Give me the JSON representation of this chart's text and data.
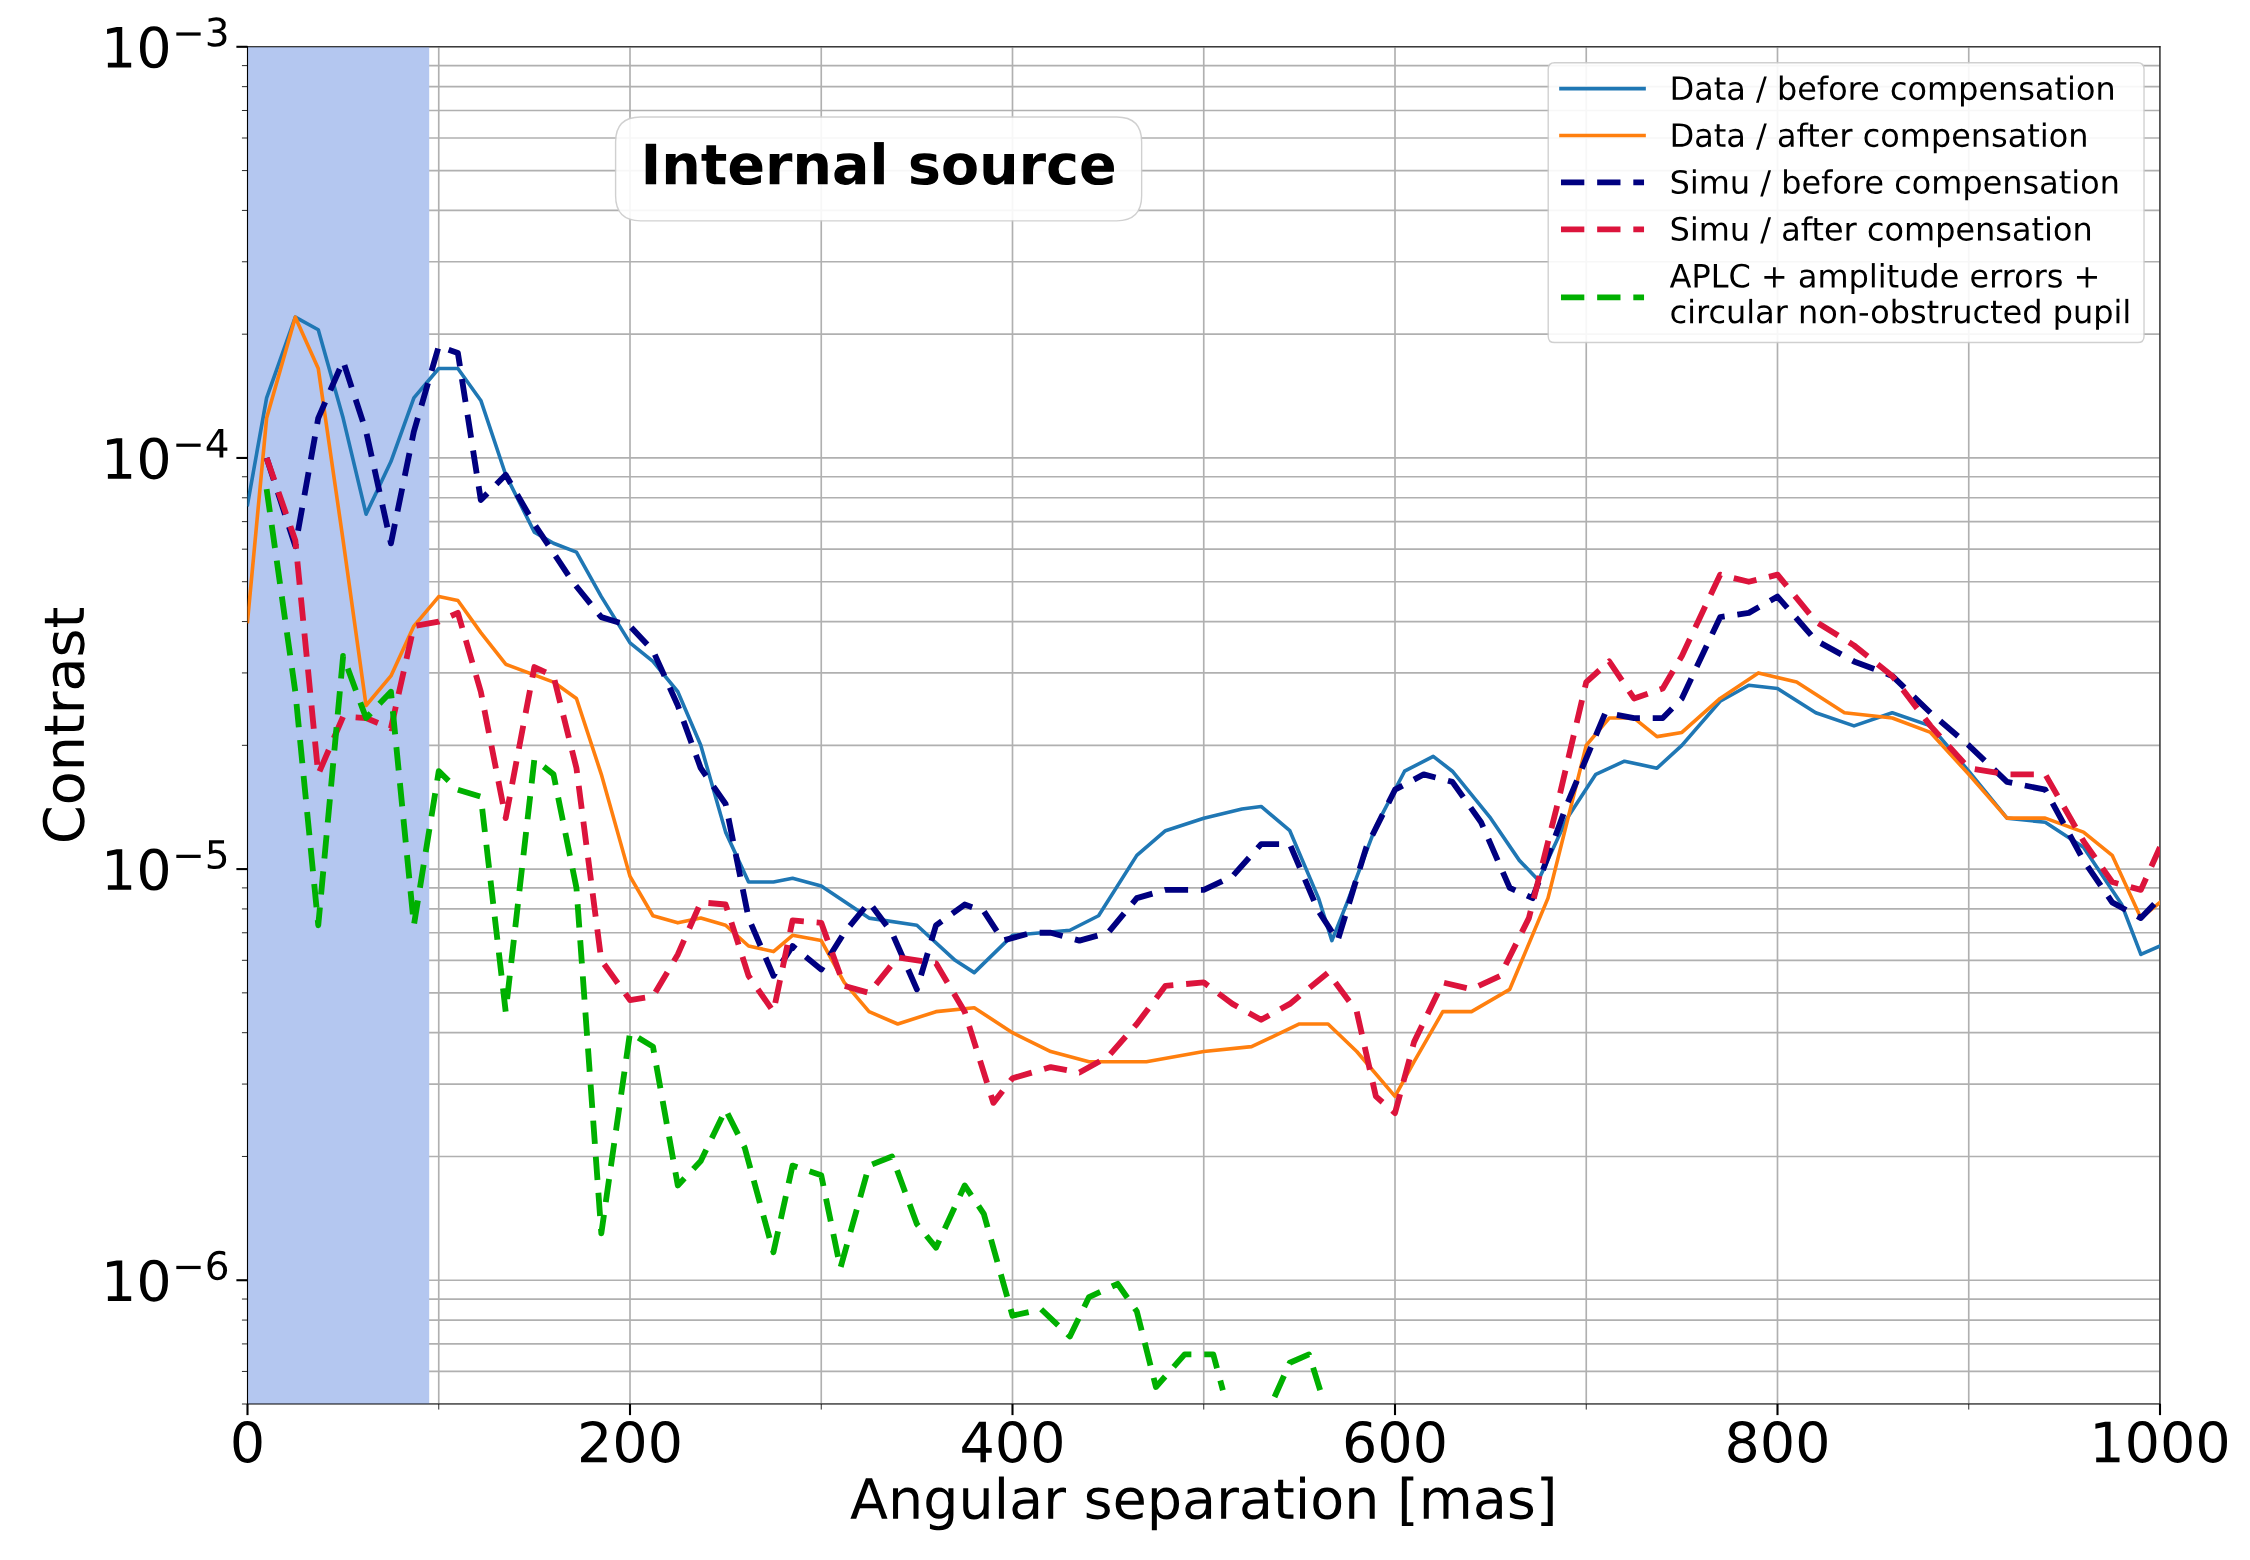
{
  "chart_data": {
    "type": "line",
    "xlabel": "Angular separation [mas]",
    "ylabel": "Contrast",
    "log": "y",
    "grid": true,
    "legend": "top right",
    "xlim": [
      0,
      1000
    ],
    "xticks": [
      0,
      200,
      400,
      600,
      800,
      1000
    ],
    "ylim": [
      5e-07,
      0.001
    ],
    "yticks": [
      {
        "value": 1e-06,
        "label": "10$^{−6}$"
      },
      {
        "value": 1e-05,
        "label": "10$^{−5}$"
      },
      {
        "value": 0.0001,
        "label": "10$^{−4}$"
      },
      {
        "value": 0.001,
        "label": "10$^{−3}$"
      }
    ],
    "annotations": [
      "Internal source"
    ],
    "bands": [
      {
        "axis": "x",
        "from": 0,
        "to": 95,
        "color": "#b4c7f0"
      }
    ],
    "series": [
      {
        "name": "Data / before compensation",
        "color": "#1f77b4",
        "line_style": "solid",
        "x": [
          0,
          10,
          25,
          37,
          50,
          62,
          75,
          87,
          100,
          110,
          122,
          135,
          150,
          160,
          172,
          185,
          200,
          212,
          225,
          237,
          250,
          262,
          275,
          285,
          300,
          325,
          350,
          370,
          380,
          400,
          430,
          445,
          465,
          480,
          500,
          520,
          530,
          545,
          560,
          567,
          575,
          590,
          605,
          620,
          630,
          650,
          665,
          675,
          690,
          705,
          720,
          737,
          750,
          770,
          785,
          800,
          820,
          840,
          860,
          880,
          900,
          920,
          940,
          960,
          980,
          990,
          1000
        ],
        "values": [
          7.7e-05,
          0.00014,
          0.00022,
          0.000205,
          0.000125,
          7.3e-05,
          9.8e-05,
          0.00014,
          0.000165,
          0.000165,
          0.000138,
          9.1e-05,
          6.6e-05,
          6.2e-05,
          5.9e-05,
          4.6e-05,
          3.55e-05,
          3.2e-05,
          2.7e-05,
          2e-05,
          1.23e-05,
          9.3e-06,
          9.3e-06,
          9.5e-06,
          9.1e-06,
          7.6e-06,
          7.3e-06,
          6e-06,
          5.6e-06,
          6.9e-06,
          7.1e-06,
          7.7e-06,
          1.08e-05,
          1.24e-05,
          1.33e-05,
          1.4e-05,
          1.42e-05,
          1.24e-05,
          8.5e-06,
          6.7e-06,
          8.3e-06,
          1.27e-05,
          1.73e-05,
          1.88e-05,
          1.73e-05,
          1.33e-05,
          1.05e-05,
          9.4e-06,
          1.33e-05,
          1.7e-05,
          1.83e-05,
          1.76e-05,
          2e-05,
          2.56e-05,
          2.8e-05,
          2.75e-05,
          2.4e-05,
          2.23e-05,
          2.4e-05,
          2.23e-05,
          1.73e-05,
          1.33e-05,
          1.3e-05,
          1.13e-05,
          8.2e-06,
          6.2e-06,
          6.5e-06
        ]
      },
      {
        "name": "Data / after compensation",
        "color": "#ff7f0e",
        "line_style": "solid",
        "x": [
          0,
          10,
          25,
          37,
          50,
          62,
          75,
          87,
          100,
          110,
          122,
          135,
          160,
          172,
          185,
          200,
          212,
          225,
          237,
          250,
          262,
          275,
          285,
          300,
          312,
          325,
          340,
          360,
          380,
          400,
          420,
          440,
          470,
          500,
          525,
          550,
          565,
          580,
          600,
          610,
          625,
          640,
          660,
          680,
          700,
          712,
          725,
          737,
          750,
          770,
          790,
          810,
          835,
          860,
          880,
          900,
          920,
          940,
          960,
          975,
          990,
          1000
        ],
        "values": [
          4e-05,
          0.000125,
          0.00022,
          0.000165,
          6.3e-05,
          2.5e-05,
          2.95e-05,
          3.9e-05,
          4.6e-05,
          4.5e-05,
          3.76e-05,
          3.15e-05,
          2.85e-05,
          2.6e-05,
          1.7e-05,
          9.6e-06,
          7.7e-06,
          7.4e-06,
          7.6e-06,
          7.3e-06,
          6.5e-06,
          6.3e-06,
          6.9e-06,
          6.7e-06,
          5.3e-06,
          4.5e-06,
          4.2e-06,
          4.5e-06,
          4.6e-06,
          4e-06,
          3.6e-06,
          3.4e-06,
          3.4e-06,
          3.6e-06,
          3.7e-06,
          4.2e-06,
          4.2e-06,
          3.6e-06,
          2.8e-06,
          3.4e-06,
          4.5e-06,
          4.5e-06,
          5.1e-06,
          8.5e-06,
          2e-05,
          2.33e-05,
          2.33e-05,
          2.1e-05,
          2.15e-05,
          2.6e-05,
          3e-05,
          2.85e-05,
          2.4e-05,
          2.33e-05,
          2.15e-05,
          1.7e-05,
          1.33e-05,
          1.33e-05,
          1.23e-05,
          1.08e-05,
          7.6e-06,
          8.3e-06
        ]
      },
      {
        "name": "Simu / before compensation",
        "color": "#000080",
        "line_style": "dashed",
        "x": [
          10,
          25,
          37,
          50,
          62,
          75,
          87,
          100,
          110,
          122,
          135,
          150,
          170,
          185,
          200,
          212,
          225,
          237,
          250,
          262,
          275,
          285,
          300,
          312,
          325,
          337,
          350,
          360,
          375,
          385,
          395,
          410,
          420,
          435,
          450,
          465,
          480,
          500,
          515,
          530,
          545,
          560,
          570,
          585,
          600,
          615,
          630,
          645,
          660,
          672,
          690,
          710,
          725,
          740,
          750,
          770,
          785,
          800,
          820,
          840,
          860,
          880,
          900,
          920,
          940,
          960,
          975,
          990,
          1000
        ],
        "values": [
          0.0001,
          6.1e-05,
          0.000125,
          0.000172,
          0.000116,
          6.2e-05,
          0.000116,
          0.000187,
          0.00018,
          7.9e-05,
          9.1e-05,
          6.9e-05,
          5e-05,
          4.1e-05,
          3.9e-05,
          3.4e-05,
          2.5e-05,
          1.76e-05,
          1.44e-05,
          7.6e-06,
          5.5e-06,
          6.5e-06,
          5.7e-06,
          7e-06,
          8.3e-06,
          7e-06,
          5.1e-06,
          7.3e-06,
          8.2e-06,
          7.9e-06,
          6.7e-06,
          7e-06,
          7e-06,
          6.7e-06,
          7e-06,
          8.5e-06,
          8.9e-06,
          8.9e-06,
          9.6e-06,
          1.15e-05,
          1.15e-05,
          7.9e-06,
          6.7e-06,
          1.13e-05,
          1.56e-05,
          1.7e-05,
          1.63e-05,
          1.3e-05,
          9e-06,
          8.5e-06,
          1.44e-05,
          2.4e-05,
          2.33e-05,
          2.33e-05,
          2.6e-05,
          4.1e-05,
          4.2e-05,
          4.6e-05,
          3.6e-05,
          3.2e-05,
          2.95e-05,
          2.4e-05,
          2e-05,
          1.63e-05,
          1.56e-05,
          1.05e-05,
          8.3e-06,
          7.6e-06,
          8.5e-06
        ]
      },
      {
        "name": "Simu / after compensation",
        "color": "#dc143c",
        "line_style": "dashed",
        "x": [
          10,
          25,
          37,
          50,
          62,
          75,
          87,
          100,
          110,
          122,
          135,
          150,
          160,
          172,
          185,
          200,
          212,
          225,
          237,
          250,
          262,
          275,
          285,
          300,
          312,
          325,
          340,
          360,
          375,
          390,
          400,
          420,
          435,
          450,
          465,
          480,
          500,
          515,
          530,
          545,
          565,
          580,
          590,
          600,
          610,
          625,
          640,
          655,
          670,
          685,
          700,
          712,
          725,
          740,
          750,
          770,
          785,
          800,
          820,
          840,
          860,
          880,
          900,
          920,
          940,
          960,
          975,
          990,
          1000
        ],
        "values": [
          0.0001,
          6.3e-05,
          1.7e-05,
          2.35e-05,
          2.33e-05,
          2.2e-05,
          3.9e-05,
          4e-05,
          4.2e-05,
          2.7e-05,
          1.33e-05,
          3.1e-05,
          2.95e-05,
          1.76e-05,
          6e-06,
          4.8e-06,
          4.9e-06,
          6.2e-06,
          8.3e-06,
          8.2e-06,
          5.5e-06,
          4.5e-06,
          7.5e-06,
          7.4e-06,
          5.2e-06,
          5e-06,
          6.1e-06,
          5.9e-06,
          4.5e-06,
          2.7e-06,
          3.1e-06,
          3.3e-06,
          3.2e-06,
          3.5e-06,
          4.2e-06,
          5.2e-06,
          5.3e-06,
          4.7e-06,
          4.3e-06,
          4.7e-06,
          5.6e-06,
          4.5e-06,
          2.8e-06,
          2.55e-06,
          3.8e-06,
          5.3e-06,
          5.1e-06,
          5.5e-06,
          7.6e-06,
          1.44e-05,
          2.85e-05,
          3.2e-05,
          2.6e-05,
          2.75e-05,
          3.3e-05,
          5.2e-05,
          5e-05,
          5.2e-05,
          4e-05,
          3.5e-05,
          2.95e-05,
          2.23e-05,
          1.76e-05,
          1.7e-05,
          1.7e-05,
          1.17e-05,
          9.3e-06,
          8.9e-06,
          1.13e-05
        ]
      },
      {
        "name": "APLC + amplitude errors +\ncircular non-obstructed pupil",
        "color": "#00b000",
        "line_style": "dashed",
        "x": [
          10,
          25,
          37,
          50,
          62,
          75,
          87,
          100,
          110,
          122,
          135,
          150,
          160,
          172,
          185,
          200,
          212,
          225,
          237,
          250,
          260,
          275,
          285,
          300,
          310,
          325,
          337,
          350,
          360,
          375,
          385,
          400,
          415,
          430,
          440,
          455,
          465,
          475,
          490,
          505,
          510,
          520,
          537,
          545,
          555,
          562
        ],
        "values": [
          8.4e-05,
          2.7e-05,
          7.3e-06,
          3.3e-05,
          2.33e-05,
          2.7e-05,
          7.3e-06,
          1.73e-05,
          1.56e-05,
          1.5e-05,
          4.5e-06,
          1.85e-05,
          1.7e-05,
          9e-06,
          1.3e-06,
          4e-06,
          3.7e-06,
          1.7e-06,
          1.95e-06,
          2.6e-06,
          2.1e-06,
          1.17e-06,
          1.9e-06,
          1.8e-06,
          1.07e-06,
          1.9e-06,
          2e-06,
          1.37e-06,
          1.2e-06,
          1.7e-06,
          1.45e-06,
          8.2e-07,
          8.5e-07,
          7.3e-07,
          9.1e-07,
          9.8e-07,
          8.4e-07,
          5.5e-07,
          6.6e-07,
          6.6e-07,
          5.4e-07,
          null,
          5.2e-07,
          6.3e-07,
          6.6e-07,
          5.2e-07
        ]
      }
    ]
  }
}
